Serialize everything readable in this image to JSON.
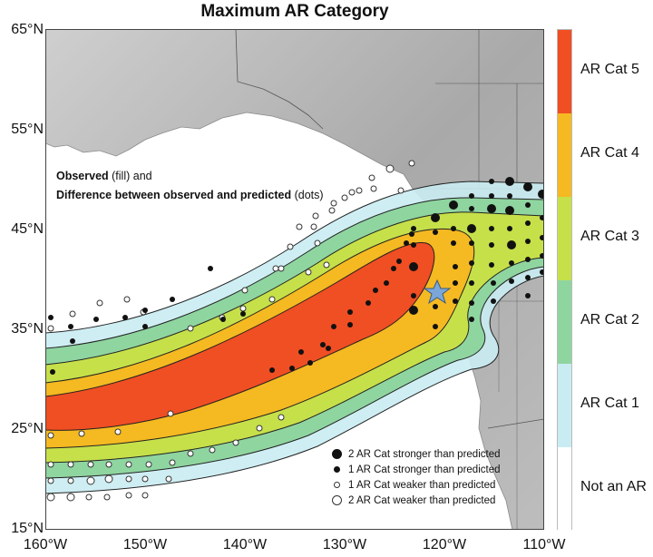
{
  "title": "Maximum AR Category",
  "lat_labels": [
    "65°N",
    "55°N",
    "45°N",
    "35°N",
    "25°N",
    "15°N"
  ],
  "lon_labels": [
    "160°W",
    "150°W",
    "140°W",
    "130°W",
    "120°W",
    "110°W"
  ],
  "categories": [
    {
      "label": "AR Cat 5",
      "color": "#f04e23"
    },
    {
      "label": "AR Cat 4",
      "color": "#f5b921"
    },
    {
      "label": "AR Cat 3",
      "color": "#c6e04a"
    },
    {
      "label": "AR Cat 2",
      "color": "#8fd5a0"
    },
    {
      "label": "AR Cat 1",
      "color": "#c9ecf2"
    },
    {
      "label": "Not an AR",
      "color": "#ffffff"
    }
  ],
  "observed_note": {
    "line1_bold": "Observed",
    "line1_rest": " (fill) and",
    "line2_bold": "Difference between observed and predicted",
    "line2_rest": " (dots)"
  },
  "dot_legend": [
    {
      "label": "2 AR Cat stronger than predicted",
      "kind": "filled-large"
    },
    {
      "label": "1 AR Cat stronger than predicted",
      "kind": "filled-small"
    },
    {
      "label": "1 AR Cat weaker than predicted",
      "kind": "open-small"
    },
    {
      "label": "2 AR Cat weaker than predicted",
      "kind": "open-large"
    }
  ],
  "landfall_marker": "star-icon"
}
